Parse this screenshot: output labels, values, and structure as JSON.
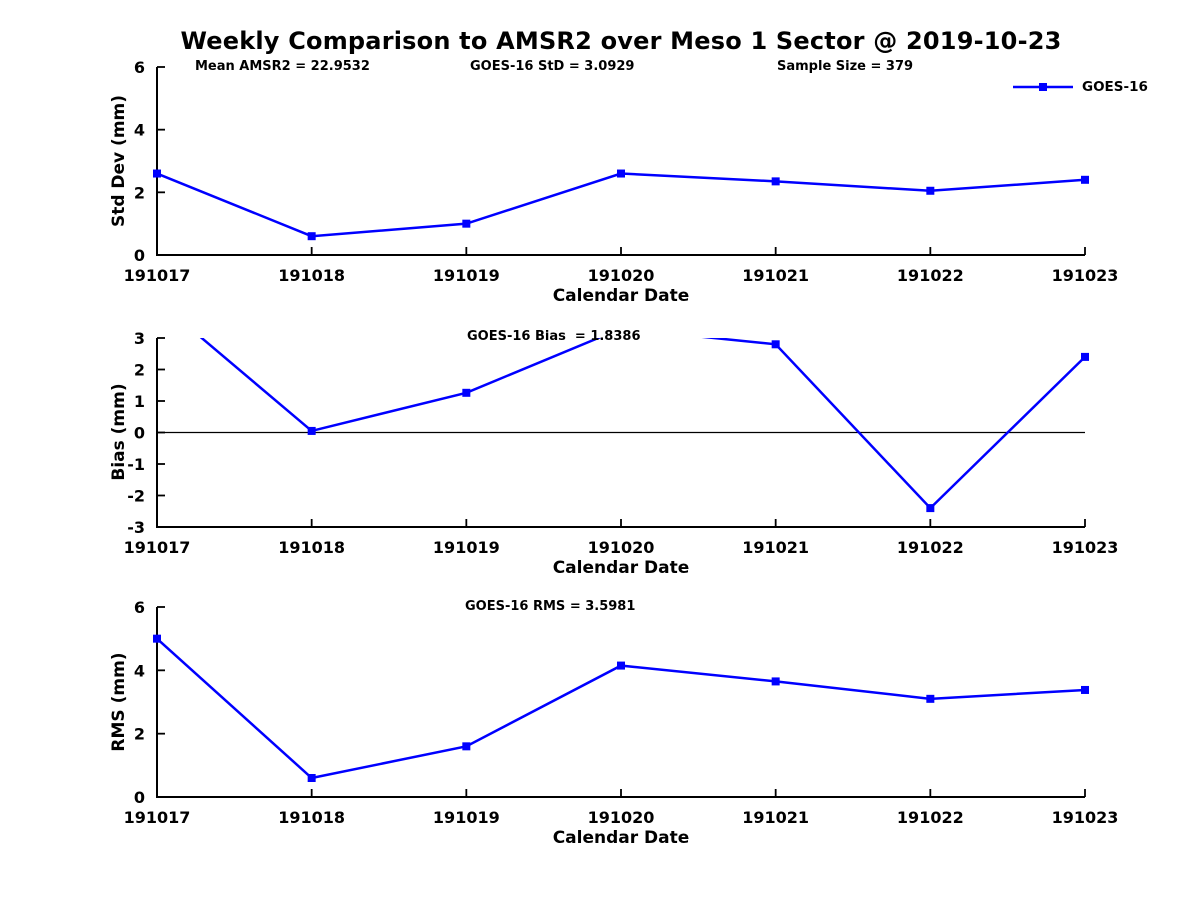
{
  "figure": {
    "title": "Weekly Comparison to AMSR2 over Meso 1 Sector @ 2019-10-23",
    "background_color": "#ffffff",
    "accent_color": "#0000ff",
    "axis_color": "#000000"
  },
  "legend": {
    "label": "GOES-16",
    "color": "#0000ff",
    "marker": "square",
    "position": "top-right"
  },
  "chart_data": [
    {
      "type": "line",
      "name": "std-dev",
      "ylabel": "Std Dev (mm)",
      "xlabel": "Calendar Date",
      "categories": [
        "191017",
        "191018",
        "191019",
        "191020",
        "191021",
        "191022",
        "191023"
      ],
      "ylim": [
        0,
        6
      ],
      "yticks": [
        0,
        2,
        4,
        6
      ],
      "grid": false,
      "legend_visible": true,
      "annotations": [
        {
          "text": "Mean AMSR2 = 22.9532"
        },
        {
          "text": "GOES-16 StD = 3.0929"
        },
        {
          "text": "Sample Size = 379"
        }
      ],
      "series": [
        {
          "name": "GOES-16",
          "color": "#0000ff",
          "values": [
            2.6,
            0.6,
            1.0,
            2.6,
            2.35,
            2.05,
            2.4
          ]
        }
      ]
    },
    {
      "type": "line",
      "name": "bias",
      "ylabel": "Bias (mm)",
      "xlabel": "Calendar Date",
      "categories": [
        "191017",
        "191018",
        "191019",
        "191020",
        "191021",
        "191022",
        "191023"
      ],
      "ylim": [
        -3,
        3
      ],
      "yticks": [
        -3,
        -2,
        -1,
        0,
        1,
        2,
        3
      ],
      "grid": false,
      "zero_line": true,
      "clip_to_ylim": true,
      "annotations": [
        {
          "text": "GOES-16 Bias  = 1.8386"
        }
      ],
      "series": [
        {
          "name": "GOES-16",
          "color": "#0000ff",
          "values": [
            4.2,
            0.05,
            1.26,
            3.3,
            2.8,
            -2.4,
            2.4
          ]
        }
      ]
    },
    {
      "type": "line",
      "name": "rms",
      "ylabel": "RMS (mm)",
      "xlabel": "Calendar Date",
      "categories": [
        "191017",
        "191018",
        "191019",
        "191020",
        "191021",
        "191022",
        "191023"
      ],
      "ylim": [
        0,
        6
      ],
      "yticks": [
        0,
        2,
        4,
        6
      ],
      "grid": false,
      "annotations": [
        {
          "text": "GOES-16 RMS = 3.5981"
        }
      ],
      "series": [
        {
          "name": "GOES-16",
          "color": "#0000ff",
          "values": [
            5.0,
            0.6,
            1.6,
            4.15,
            3.65,
            3.1,
            3.38
          ]
        }
      ]
    }
  ]
}
